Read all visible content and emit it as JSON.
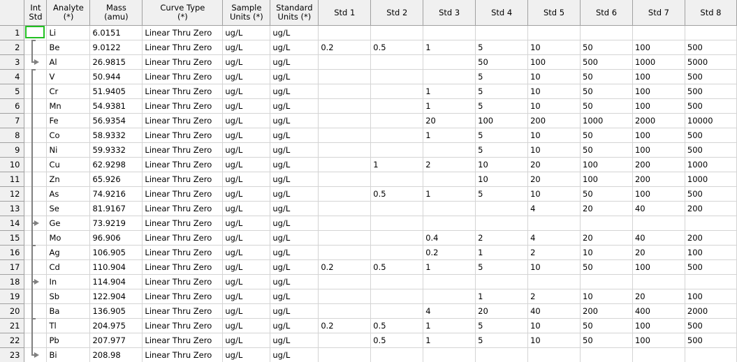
{
  "grid": {
    "headers": [
      "Int\nStd",
      "Analyte\n(*)",
      "Mass\n(amu)",
      "Curve Type\n(*)",
      "Sample\nUnits (*)",
      "Standard\nUnits (*)",
      "Std 1",
      "Std 2",
      "Std 3",
      "Std 4",
      "Std 5",
      "Std 6",
      "Std 7",
      "Std 8"
    ],
    "rows": [
      {
        "num": "1",
        "analyte": "Li",
        "mass": "6.0151",
        "curve": "Linear Thru Zero",
        "sample_units": "ug/L",
        "std_units": "ug/L",
        "std": [
          "",
          "",
          "",
          "",
          "",
          "",
          "",
          ""
        ]
      },
      {
        "num": "2",
        "analyte": "Be",
        "mass": "9.0122",
        "curve": "Linear Thru Zero",
        "sample_units": "ug/L",
        "std_units": "ug/L",
        "std": [
          "0.2",
          "0.5",
          "1",
          "5",
          "10",
          "50",
          "100",
          "500"
        ]
      },
      {
        "num": "3",
        "analyte": "Al",
        "mass": "26.9815",
        "curve": "Linear Thru Zero",
        "sample_units": "ug/L",
        "std_units": "ug/L",
        "std": [
          "",
          "",
          "",
          "50",
          "100",
          "500",
          "1000",
          "5000"
        ]
      },
      {
        "num": "4",
        "analyte": "V",
        "mass": "50.944",
        "curve": "Linear Thru Zero",
        "sample_units": "ug/L",
        "std_units": "ug/L",
        "std": [
          "",
          "",
          "",
          "5",
          "10",
          "50",
          "100",
          "500"
        ]
      },
      {
        "num": "5",
        "analyte": "Cr",
        "mass": "51.9405",
        "curve": "Linear Thru Zero",
        "sample_units": "ug/L",
        "std_units": "ug/L",
        "std": [
          "",
          "",
          "1",
          "5",
          "10",
          "50",
          "100",
          "500"
        ]
      },
      {
        "num": "6",
        "analyte": "Mn",
        "mass": "54.9381",
        "curve": "Linear Thru Zero",
        "sample_units": "ug/L",
        "std_units": "ug/L",
        "std": [
          "",
          "",
          "1",
          "5",
          "10",
          "50",
          "100",
          "500"
        ]
      },
      {
        "num": "7",
        "analyte": "Fe",
        "mass": "56.9354",
        "curve": "Linear Thru Zero",
        "sample_units": "ug/L",
        "std_units": "ug/L",
        "std": [
          "",
          "",
          "20",
          "100",
          "200",
          "1000",
          "2000",
          "10000"
        ]
      },
      {
        "num": "8",
        "analyte": "Co",
        "mass": "58.9332",
        "curve": "Linear Thru Zero",
        "sample_units": "ug/L",
        "std_units": "ug/L",
        "std": [
          "",
          "",
          "1",
          "5",
          "10",
          "50",
          "100",
          "500"
        ]
      },
      {
        "num": "9",
        "analyte": "Ni",
        "mass": "59.9332",
        "curve": "Linear Thru Zero",
        "sample_units": "ug/L",
        "std_units": "ug/L",
        "std": [
          "",
          "",
          "",
          "5",
          "10",
          "50",
          "100",
          "500"
        ]
      },
      {
        "num": "10",
        "analyte": "Cu",
        "mass": "62.9298",
        "curve": "Linear Thru Zero",
        "sample_units": "ug/L",
        "std_units": "ug/L",
        "std": [
          "",
          "1",
          "2",
          "10",
          "20",
          "100",
          "200",
          "1000"
        ]
      },
      {
        "num": "11",
        "analyte": "Zn",
        "mass": "65.926",
        "curve": "Linear Thru Zero",
        "sample_units": "ug/L",
        "std_units": "ug/L",
        "std": [
          "",
          "",
          "",
          "10",
          "20",
          "100",
          "200",
          "1000"
        ]
      },
      {
        "num": "12",
        "analyte": "As",
        "mass": "74.9216",
        "curve": "Linear Thru Zero",
        "sample_units": "ug/L",
        "std_units": "ug/L",
        "std": [
          "",
          "0.5",
          "1",
          "5",
          "10",
          "50",
          "100",
          "500"
        ]
      },
      {
        "num": "13",
        "analyte": "Se",
        "mass": "81.9167",
        "curve": "Linear Thru Zero",
        "sample_units": "ug/L",
        "std_units": "ug/L",
        "std": [
          "",
          "",
          "",
          "",
          "4",
          "20",
          "40",
          "200"
        ]
      },
      {
        "num": "14",
        "analyte": "Ge",
        "mass": "73.9219",
        "curve": "Linear Thru Zero",
        "sample_units": "ug/L",
        "std_units": "ug/L",
        "std": [
          "",
          "",
          "",
          "",
          "",
          "",
          "",
          ""
        ]
      },
      {
        "num": "15",
        "analyte": "Mo",
        "mass": "96.906",
        "curve": "Linear Thru Zero",
        "sample_units": "ug/L",
        "std_units": "ug/L",
        "std": [
          "",
          "",
          "0.4",
          "2",
          "4",
          "20",
          "40",
          "200"
        ]
      },
      {
        "num": "16",
        "analyte": "Ag",
        "mass": "106.905",
        "curve": "Linear Thru Zero",
        "sample_units": "ug/L",
        "std_units": "ug/L",
        "std": [
          "",
          "",
          "0.2",
          "1",
          "2",
          "10",
          "20",
          "100"
        ]
      },
      {
        "num": "17",
        "analyte": "Cd",
        "mass": "110.904",
        "curve": "Linear Thru Zero",
        "sample_units": "ug/L",
        "std_units": "ug/L",
        "std": [
          "0.2",
          "0.5",
          "1",
          "5",
          "10",
          "50",
          "100",
          "500"
        ]
      },
      {
        "num": "18",
        "analyte": "In",
        "mass": "114.904",
        "curve": "Linear Thru Zero",
        "sample_units": "ug/L",
        "std_units": "ug/L",
        "std": [
          "",
          "",
          "",
          "",
          "",
          "",
          "",
          ""
        ]
      },
      {
        "num": "19",
        "analyte": "Sb",
        "mass": "122.904",
        "curve": "Linear Thru Zero",
        "sample_units": "ug/L",
        "std_units": "ug/L",
        "std": [
          "",
          "",
          "",
          "1",
          "2",
          "10",
          "20",
          "100"
        ]
      },
      {
        "num": "20",
        "analyte": "Ba",
        "mass": "136.905",
        "curve": "Linear Thru Zero",
        "sample_units": "ug/L",
        "std_units": "ug/L",
        "std": [
          "",
          "",
          "4",
          "20",
          "40",
          "200",
          "400",
          "2000"
        ]
      },
      {
        "num": "21",
        "analyte": "Tl",
        "mass": "204.975",
        "curve": "Linear Thru Zero",
        "sample_units": "ug/L",
        "std_units": "ug/L",
        "std": [
          "0.2",
          "0.5",
          "1",
          "5",
          "10",
          "50",
          "100",
          "500"
        ]
      },
      {
        "num": "22",
        "analyte": "Pb",
        "mass": "207.977",
        "curve": "Linear Thru Zero",
        "sample_units": "ug/L",
        "std_units": "ug/L",
        "std": [
          "",
          "0.5",
          "1",
          "5",
          "10",
          "50",
          "100",
          "500"
        ]
      },
      {
        "num": "23",
        "analyte": "Bi",
        "mass": "208.98",
        "curve": "Linear Thru Zero",
        "sample_units": "ug/L",
        "std_units": "ug/L",
        "std": [
          "",
          "",
          "",
          "",
          "",
          "",
          "",
          ""
        ]
      }
    ],
    "colors": {
      "header_bg": "#f0f0f0",
      "grid_line": "#d4d4d4",
      "selection": "#22c022",
      "group_line": "#808080"
    }
  }
}
